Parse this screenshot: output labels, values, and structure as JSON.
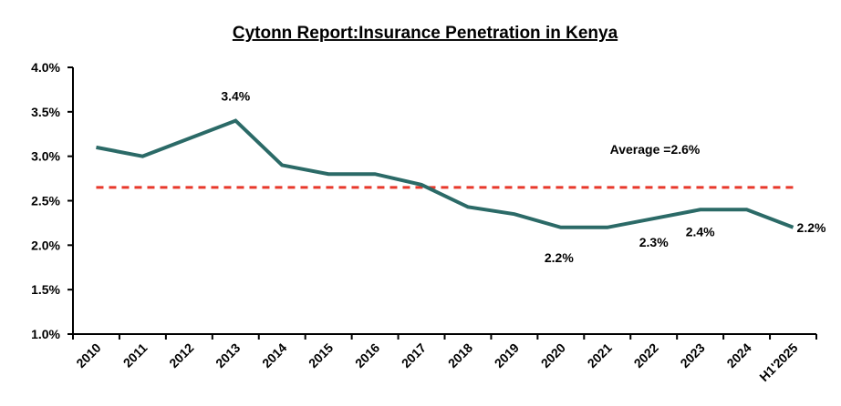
{
  "chart_data": {
    "type": "line",
    "title": "Cytonn Report:Insurance Penetration in Kenya",
    "xlabel": "",
    "ylabel": "",
    "categories": [
      "2010",
      "2011",
      "2012",
      "2013",
      "2014",
      "2015",
      "2016",
      "2017",
      "2018",
      "2019",
      "2020",
      "2021",
      "2022",
      "2023",
      "2024",
      "H1'2025"
    ],
    "series": [
      {
        "name": "Insurance Penetration",
        "color": "#2B6A67",
        "values": [
          3.1,
          3.0,
          3.2,
          3.4,
          2.9,
          2.8,
          2.8,
          2.68,
          2.43,
          2.35,
          2.2,
          2.2,
          2.3,
          2.4,
          2.4,
          2.2
        ]
      }
    ],
    "average": {
      "value": 2.65,
      "label": "Average =2.6%",
      "color": "#E8382B",
      "style": "dashed"
    },
    "ylim": [
      1.0,
      4.0
    ],
    "yticks": [
      1.0,
      1.5,
      2.0,
      2.5,
      3.0,
      3.5,
      4.0
    ],
    "ytick_labels": [
      "1.0%",
      "1.5%",
      "2.0%",
      "2.5%",
      "3.0%",
      "3.5%",
      "4.0%"
    ],
    "grid": false,
    "legend": "none",
    "annotations": [
      {
        "category": "2013",
        "text": "3.4%",
        "position": "above"
      },
      {
        "category": "2020",
        "text": "2.2%",
        "position": "below"
      },
      {
        "category": "2022",
        "text": "2.3%",
        "position": "below"
      },
      {
        "category": "2023",
        "text": "2.4%",
        "position": "below"
      },
      {
        "category": "H1'2025",
        "text": "2.2%",
        "position": "right"
      }
    ]
  }
}
